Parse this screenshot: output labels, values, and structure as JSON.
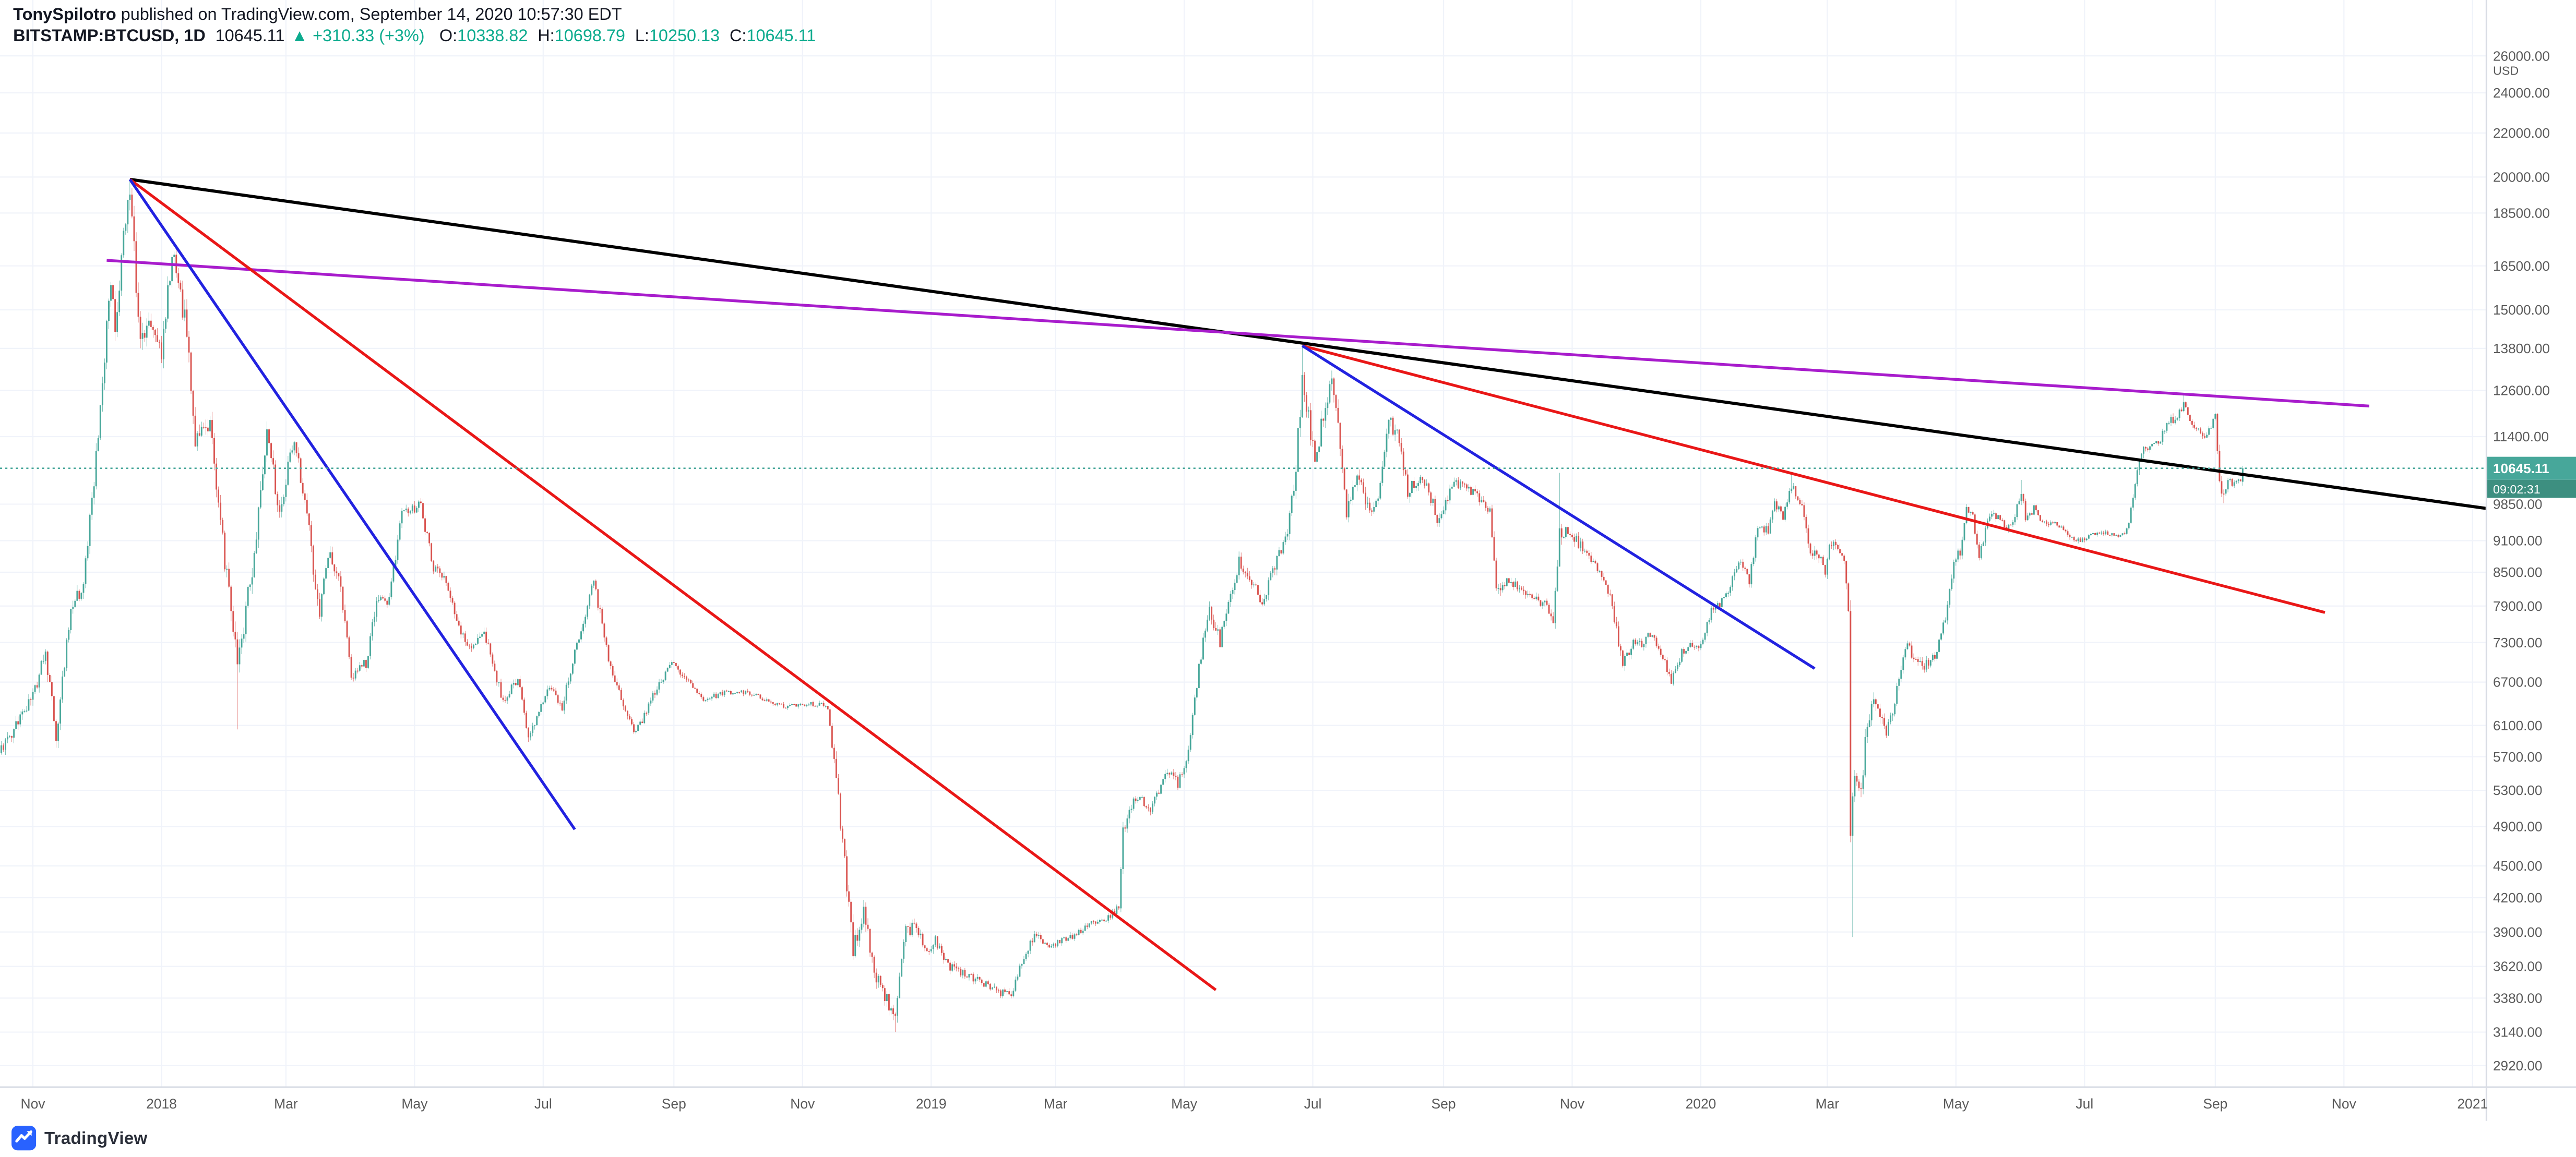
{
  "header": {
    "author": "TonySpilotro",
    "published": " published on TradingView.com, September 14, 2020 10:57:30 EDT",
    "symbol": "BITSTAMP:BTCUSD, 1D",
    "last_price": "10645.11",
    "change": "▲ +310.33 (+3%)",
    "o_label": "O:",
    "o_value": "10338.82",
    "h_label": "H:",
    "h_value": "10698.79",
    "l_label": "L:",
    "l_value": "10250.13",
    "c_label": "C:",
    "c_value": "10645.11"
  },
  "footer": {
    "brand": "TradingView"
  },
  "price_axis": {
    "unit": "USD",
    "labels": [
      "26000.00",
      "24000.00",
      "22000.00",
      "20000.00",
      "18500.00",
      "16500.00",
      "15000.00",
      "13800.00",
      "12600.00",
      "11400.00",
      "9850.00",
      "9100.00",
      "8500.00",
      "7900.00",
      "7300.00",
      "6700.00",
      "6100.00",
      "5700.00",
      "5300.00",
      "4900.00",
      "4500.00",
      "4200.00",
      "3900.00",
      "3620.00",
      "3380.00",
      "3140.00",
      "2920.00"
    ],
    "current_price": "10645.11",
    "countdown": "09:02:31"
  },
  "time_axis": {
    "ticks": [
      {
        "label": "Nov",
        "day": 17
      },
      {
        "label": "2018",
        "day": 78
      },
      {
        "label": "Mar",
        "day": 137
      },
      {
        "label": "May",
        "day": 198
      },
      {
        "label": "Jul",
        "day": 259
      },
      {
        "label": "Sep",
        "day": 321
      },
      {
        "label": "Nov",
        "day": 382
      },
      {
        "label": "2019",
        "day": 443
      },
      {
        "label": "Mar",
        "day": 502
      },
      {
        "label": "May",
        "day": 563
      },
      {
        "label": "Jul",
        "day": 624
      },
      {
        "label": "Sep",
        "day": 686
      },
      {
        "label": "Nov",
        "day": 747
      },
      {
        "label": "2020",
        "day": 808
      },
      {
        "label": "Mar",
        "day": 868
      },
      {
        "label": "May",
        "day": 929
      },
      {
        "label": "Jul",
        "day": 990
      },
      {
        "label": "Sep",
        "day": 1052
      },
      {
        "label": "Nov",
        "day": 1113
      },
      {
        "label": "2021",
        "day": 1174
      }
    ]
  },
  "colors": {
    "up": "#47a79a",
    "down": "#d9534f",
    "badge": "#47a79a",
    "badge_countdown": "#3d8f80",
    "grid": "#f0f3fa",
    "axis_text": "#5a5a5a",
    "border": "#d8dce4",
    "current_line": "#47a79a",
    "logo_blue": "#2962ff",
    "text_dark": "#131722"
  },
  "chart_data": {
    "type": "candlestick",
    "symbol": "BITSTAMP:BTCUSD",
    "timeframe": "1D",
    "price_scale": "log",
    "quote_unit": "USD",
    "date_range": {
      "start": "2017-10-15",
      "last_candle": "2020-09-14",
      "axis_end": "2021-01"
    },
    "last_candle": {
      "open": 10338.82,
      "high": 10698.79,
      "low": 10250.13,
      "close": 10645.11,
      "change": "+310.33",
      "change_pct": "+3%"
    },
    "current_price": 10645.11,
    "anchors": [
      [
        0,
        5700,
        1.2
      ],
      [
        17,
        6500,
        1.3
      ],
      [
        23,
        7150,
        1.5
      ],
      [
        28,
        5950,
        1.7
      ],
      [
        35,
        7900,
        1.5
      ],
      [
        41,
        8250,
        1.5
      ],
      [
        47,
        10900,
        2.0
      ],
      [
        54,
        16200,
        2.4
      ],
      [
        56,
        14300,
        2.4
      ],
      [
        60,
        17500,
        2.3
      ],
      [
        63,
        19650,
        2.3
      ],
      [
        68,
        13800,
        2.6
      ],
      [
        71,
        14800,
        2.3
      ],
      [
        78,
        13500,
        2.1
      ],
      [
        83,
        17100,
        2.1
      ],
      [
        90,
        14300,
        2.3
      ],
      [
        94,
        11300,
        2.4
      ],
      [
        101,
        11700,
        2.0
      ],
      [
        108,
        8700,
        2.2
      ],
      [
        114,
        6900,
        2.4
      ],
      [
        121,
        8600,
        2.1
      ],
      [
        128,
        11400,
        1.9
      ],
      [
        134,
        9700,
        1.8
      ],
      [
        141,
        11450,
        1.6
      ],
      [
        147,
        9600,
        1.6
      ],
      [
        153,
        7700,
        1.5
      ],
      [
        157,
        8900,
        1.4
      ],
      [
        163,
        8250,
        1.3
      ],
      [
        168,
        6700,
        1.3
      ],
      [
        175,
        7000,
        1.2
      ],
      [
        180,
        7950,
        1.2
      ],
      [
        186,
        8000,
        1.1
      ],
      [
        192,
        9650,
        1.2
      ],
      [
        201,
        9820,
        1.1
      ],
      [
        207,
        8550,
        1.1
      ],
      [
        212,
        8450,
        1.0
      ],
      [
        218,
        7600,
        1.0
      ],
      [
        224,
        7200,
        1.0
      ],
      [
        231,
        7500,
        0.9
      ],
      [
        240,
        6400,
        1.0
      ],
      [
        247,
        6750,
        0.9
      ],
      [
        252,
        5900,
        1.0
      ],
      [
        257,
        6250,
        0.9
      ],
      [
        262,
        6650,
        0.9
      ],
      [
        268,
        6350,
        0.9
      ],
      [
        276,
        7400,
        1.0
      ],
      [
        283,
        8350,
        1.0
      ],
      [
        290,
        7050,
        1.0
      ],
      [
        298,
        6300,
        1.0
      ],
      [
        303,
        6000,
        0.9
      ],
      [
        310,
        6450,
        0.8
      ],
      [
        320,
        7000,
        0.8
      ],
      [
        328,
        6700,
        0.6
      ],
      [
        335,
        6450,
        0.55
      ],
      [
        345,
        6550,
        0.5
      ],
      [
        355,
        6550,
        0.45
      ],
      [
        365,
        6450,
        0.45
      ],
      [
        375,
        6350,
        0.45
      ],
      [
        385,
        6400,
        0.5
      ],
      [
        394,
        6350,
        0.6
      ],
      [
        397,
        5600,
        1.8
      ],
      [
        400,
        4950,
        2.2
      ],
      [
        406,
        3780,
        2.0
      ],
      [
        411,
        4100,
        1.6
      ],
      [
        416,
        3550,
        1.5
      ],
      [
        421,
        3400,
        1.4
      ],
      [
        426,
        3250,
        1.5
      ],
      [
        430,
        3850,
        1.7
      ],
      [
        435,
        4000,
        1.5
      ],
      [
        440,
        3750,
        1.2
      ],
      [
        445,
        3820,
        1.1
      ],
      [
        452,
        3620,
        0.9
      ],
      [
        460,
        3560,
        0.8
      ],
      [
        470,
        3470,
        0.7
      ],
      [
        476,
        3420,
        0.8
      ],
      [
        481,
        3400,
        0.8
      ],
      [
        486,
        3650,
        0.9
      ],
      [
        492,
        3880,
        0.8
      ],
      [
        499,
        3780,
        0.7
      ],
      [
        505,
        3820,
        0.7
      ],
      [
        512,
        3880,
        0.6
      ],
      [
        520,
        3990,
        0.6
      ],
      [
        526,
        4020,
        0.6
      ],
      [
        532,
        4110,
        0.7
      ],
      [
        534,
        4880,
        1.3
      ],
      [
        540,
        5230,
        1.0
      ],
      [
        547,
        5100,
        0.8
      ],
      [
        555,
        5530,
        0.9
      ],
      [
        560,
        5380,
        0.9
      ],
      [
        565,
        5750,
        1.0
      ],
      [
        570,
        6950,
        1.3
      ],
      [
        575,
        7850,
        1.4
      ],
      [
        580,
        7300,
        1.3
      ],
      [
        585,
        8100,
        1.3
      ],
      [
        589,
        8700,
        1.3
      ],
      [
        595,
        8350,
        1.2
      ],
      [
        600,
        7980,
        1.2
      ],
      [
        606,
        8600,
        1.3
      ],
      [
        612,
        9300,
        1.5
      ],
      [
        616,
        10700,
        1.8
      ],
      [
        619,
        12900,
        2.1
      ],
      [
        622,
        11900,
        2.2
      ],
      [
        625,
        10850,
        2.0
      ],
      [
        629,
        11900,
        1.9
      ],
      [
        633,
        12850,
        1.9
      ],
      [
        637,
        11200,
        1.9
      ],
      [
        640,
        9700,
        1.9
      ],
      [
        645,
        10600,
        1.6
      ],
      [
        652,
        9550,
        1.4
      ],
      [
        656,
        10300,
        1.4
      ],
      [
        660,
        11850,
        1.5
      ],
      [
        665,
        11300,
        1.4
      ],
      [
        669,
        10100,
        1.4
      ],
      [
        674,
        10400,
        1.2
      ],
      [
        679,
        10150,
        1.1
      ],
      [
        683,
        9550,
        1.1
      ],
      [
        687,
        9900,
        1.1
      ],
      [
        691,
        10350,
        1.1
      ],
      [
        696,
        10200,
        0.9
      ],
      [
        702,
        10050,
        0.9
      ],
      [
        708,
        9650,
        1.1
      ],
      [
        711,
        8150,
        1.6
      ],
      [
        716,
        8350,
        1.1
      ],
      [
        722,
        8250,
        0.9
      ],
      [
        728,
        8000,
        0.9
      ],
      [
        734,
        7950,
        0.9
      ],
      [
        738,
        7550,
        1.0
      ],
      [
        741,
        9200,
        1.9
      ],
      [
        745,
        9350,
        1.3
      ],
      [
        748,
        9150,
        1.1
      ],
      [
        752,
        8950,
        0.9
      ],
      [
        755,
        8750,
        0.9
      ],
      [
        760,
        8500,
        0.9
      ],
      [
        765,
        8100,
        1.0
      ],
      [
        771,
        6950,
        1.2
      ],
      [
        776,
        7300,
        1.0
      ],
      [
        780,
        7250,
        0.8
      ],
      [
        784,
        7450,
        0.8
      ],
      [
        789,
        7150,
        0.8
      ],
      [
        794,
        6700,
        0.8
      ],
      [
        799,
        7150,
        0.8
      ],
      [
        803,
        7300,
        0.7
      ],
      [
        807,
        7200,
        0.7
      ],
      [
        813,
        7800,
        0.8
      ],
      [
        820,
        8050,
        0.8
      ],
      [
        826,
        8700,
        0.9
      ],
      [
        831,
        8350,
        0.8
      ],
      [
        835,
        9350,
        0.9
      ],
      [
        840,
        9300,
        0.8
      ],
      [
        843,
        9850,
        0.8
      ],
      [
        847,
        9600,
        0.8
      ],
      [
        851,
        10280,
        0.9
      ],
      [
        855,
        9900,
        0.9
      ],
      [
        857,
        9650,
        1.0
      ],
      [
        860,
        8750,
        1.2
      ],
      [
        863,
        8850,
        1.1
      ],
      [
        867,
        8550,
        1.1
      ],
      [
        870,
        9100,
        1.1
      ],
      [
        872,
        9050,
        1.1
      ],
      [
        876,
        8750,
        1.3
      ],
      [
        878,
        7900,
        1.8
      ],
      [
        879,
        4900,
        2.6
      ],
      [
        881,
        5400,
        2.4
      ],
      [
        884,
        5300,
        2.0
      ],
      [
        887,
        6150,
        1.8
      ],
      [
        891,
        6450,
        1.5
      ],
      [
        896,
        5950,
        1.3
      ],
      [
        900,
        6400,
        1.2
      ],
      [
        905,
        7250,
        1.2
      ],
      [
        909,
        7100,
        1.0
      ],
      [
        913,
        6900,
        0.9
      ],
      [
        917,
        7050,
        0.9
      ],
      [
        920,
        7150,
        0.9
      ],
      [
        924,
        7700,
        0.9
      ],
      [
        928,
        8700,
        1.0
      ],
      [
        931,
        8900,
        0.9
      ],
      [
        934,
        9850,
        1.0
      ],
      [
        937,
        9550,
        0.9
      ],
      [
        940,
        8800,
        0.9
      ],
      [
        943,
        9300,
        0.8
      ],
      [
        946,
        9700,
        0.8
      ],
      [
        950,
        9500,
        0.7
      ],
      [
        953,
        9350,
        0.7
      ],
      [
        957,
        9600,
        0.7
      ],
      [
        960,
        10150,
        0.9
      ],
      [
        962,
        9550,
        0.8
      ],
      [
        966,
        9750,
        0.7
      ],
      [
        970,
        9450,
        0.6
      ],
      [
        975,
        9450,
        0.55
      ],
      [
        980,
        9300,
        0.55
      ],
      [
        986,
        9100,
        0.6
      ],
      [
        991,
        9150,
        0.5
      ],
      [
        996,
        9250,
        0.45
      ],
      [
        1000,
        9250,
        0.4
      ],
      [
        1005,
        9200,
        0.4
      ],
      [
        1010,
        9300,
        0.5
      ],
      [
        1013,
        9950,
        0.9
      ],
      [
        1016,
        10950,
        1.2
      ],
      [
        1019,
        11050,
        1.0
      ],
      [
        1022,
        11150,
        0.9
      ],
      [
        1026,
        11350,
        0.8
      ],
      [
        1030,
        11750,
        0.9
      ],
      [
        1034,
        11900,
        0.8
      ],
      [
        1037,
        12200,
        0.9
      ],
      [
        1040,
        11850,
        0.8
      ],
      [
        1043,
        11550,
        0.8
      ],
      [
        1047,
        11450,
        0.7
      ],
      [
        1050,
        11650,
        0.7
      ],
      [
        1052,
        11950,
        0.8
      ],
      [
        1054,
        10250,
        1.6
      ],
      [
        1056,
        10150,
        1.0
      ],
      [
        1058,
        10350,
        0.8
      ],
      [
        1060,
        10300,
        0.7
      ],
      [
        1062,
        10400,
        0.7
      ],
      [
        1064,
        10340,
        0.6
      ],
      [
        1065,
        10645,
        0.6
      ]
    ],
    "wick_overrides": {
      "63": {
        "high": 19891
      },
      "114": {
        "low": 6048
      },
      "426": {
        "low": 3141
      },
      "619": {
        "high": 13880
      },
      "741": {
        "high": 10540
      },
      "851": {
        "high": 10500
      },
      "880": {
        "low": 3858
      },
      "960": {
        "high": 10380
      },
      "1037": {
        "high": 12473
      },
      "1056": {
        "low": 9870
      },
      "1065": {
        "open": 10338.82,
        "high": 10698.79,
        "low": 10250.13,
        "close": 10645.11
      }
    },
    "trendlines": [
      {
        "name": "black-trendline",
        "color": "#000000",
        "width": 1.9,
        "from": [
          63,
          19900
        ],
        "to": [
          1190,
          9700
        ]
      },
      {
        "name": "purple-trendline",
        "color": "#a81ccc",
        "width": 1.7,
        "from": [
          52,
          16700
        ],
        "to": [
          1125,
          12180
        ]
      },
      {
        "name": "red-trendline-1",
        "color": "#e91717",
        "width": 1.7,
        "from": [
          63,
          19900
        ],
        "to": [
          578,
          3440
        ]
      },
      {
        "name": "blue-trendline-1",
        "color": "#2222e0",
        "width": 1.7,
        "from": [
          63,
          19900
        ],
        "to": [
          274,
          4870
        ]
      },
      {
        "name": "red-trendline-2",
        "color": "#e91717",
        "width": 1.7,
        "from": [
          619,
          13880
        ],
        "to": [
          1104,
          7790
        ]
      },
      {
        "name": "blue-trendline-2",
        "color": "#2222e0",
        "width": 1.7,
        "from": [
          619,
          13880
        ],
        "to": [
          862,
          6900
        ]
      }
    ]
  }
}
